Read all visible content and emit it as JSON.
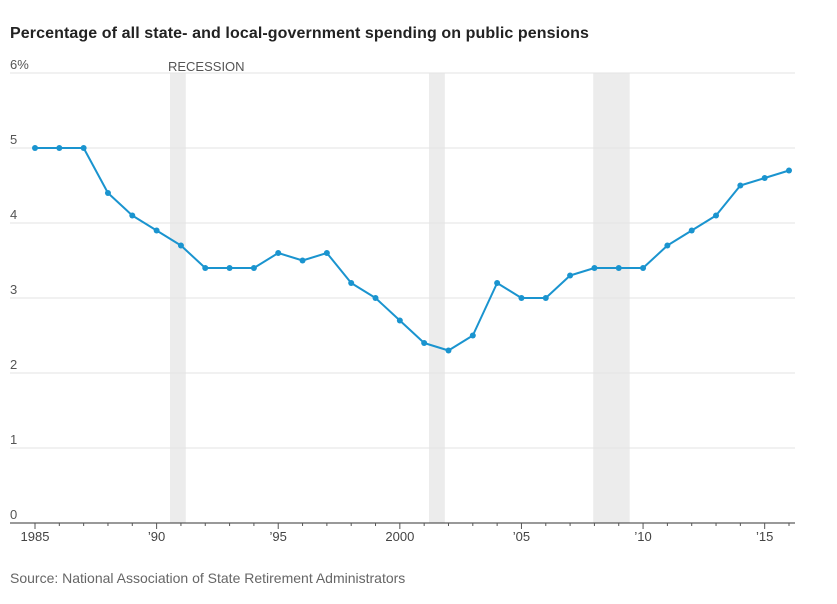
{
  "chart_data": {
    "type": "line",
    "title": "Percentage of all state- and local-government spending on public pensions",
    "source": "Source: National Association of State Retirement Administrators",
    "xlabel": "",
    "ylabel": "",
    "xlim": [
      1985,
      2016
    ],
    "ylim": [
      0,
      6
    ],
    "y_ticks": [
      {
        "value": 0,
        "label": "0"
      },
      {
        "value": 1,
        "label": "1"
      },
      {
        "value": 2,
        "label": "2"
      },
      {
        "value": 3,
        "label": "3"
      },
      {
        "value": 4,
        "label": "4"
      },
      {
        "value": 5,
        "label": "5"
      },
      {
        "value": 6,
        "label": "6%"
      }
    ],
    "x_ticks": [
      {
        "value": 1985,
        "label": "1985"
      },
      {
        "value": 1990,
        "label": "’90"
      },
      {
        "value": 1995,
        "label": "’95"
      },
      {
        "value": 2000,
        "label": "2000"
      },
      {
        "value": 2005,
        "label": "’05"
      },
      {
        "value": 2010,
        "label": "’10"
      },
      {
        "value": 2015,
        "label": "’15"
      }
    ],
    "recession_label": "RECESSION",
    "recessions": [
      [
        1990.55,
        1991.2
      ],
      [
        2001.2,
        2001.85
      ],
      [
        2007.95,
        2009.45
      ]
    ],
    "grid": true,
    "line_color": "#1a94cf",
    "band_color": "#ececec",
    "x": [
      1985,
      1986,
      1987,
      1988,
      1989,
      1990,
      1991,
      1992,
      1993,
      1994,
      1995,
      1996,
      1997,
      1998,
      1999,
      2000,
      2001,
      2002,
      2003,
      2004,
      2005,
      2006,
      2007,
      2008,
      2009,
      2010,
      2011,
      2012,
      2013,
      2014,
      2015,
      2016
    ],
    "values": [
      5.0,
      5.0,
      5.0,
      4.4,
      4.1,
      3.9,
      3.7,
      3.4,
      3.4,
      3.4,
      3.6,
      3.5,
      3.6,
      3.2,
      3.0,
      2.7,
      2.4,
      2.3,
      2.5,
      3.2,
      3.0,
      3.0,
      3.3,
      3.4,
      3.4,
      3.4,
      3.7,
      3.9,
      4.1,
      4.5,
      4.6,
      4.7
    ]
  }
}
